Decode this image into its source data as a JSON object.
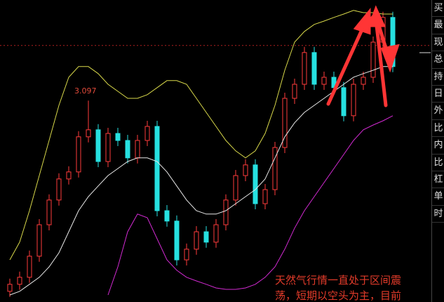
{
  "chart_data": {
    "type": "candlestick",
    "categories": [
      null,
      null,
      null,
      null,
      null,
      null,
      null,
      null,
      null,
      null,
      null,
      null,
      null,
      null,
      null,
      null,
      null,
      null,
      null,
      null,
      null,
      null,
      null,
      null,
      null,
      null,
      null,
      null,
      null,
      null,
      null,
      null,
      null,
      null,
      null,
      null,
      null,
      null,
      null,
      null
    ],
    "open": [
      2.418,
      2.443,
      2.468,
      2.543,
      2.655,
      2.743,
      2.818,
      2.843,
      2.968,
      2.993,
      2.88,
      2.98,
      2.955,
      2.893,
      2.955,
      3.005,
      2.705,
      2.668,
      2.53,
      2.568,
      2.63,
      2.593,
      2.655,
      2.743,
      2.83,
      2.868,
      2.73,
      2.78,
      2.93,
      3.105,
      3.155,
      3.268,
      3.155,
      3.18,
      3.143,
      3.043,
      3.155,
      3.18,
      3.305,
      3.393
    ],
    "high": [
      2.463,
      2.488,
      2.563,
      2.675,
      2.763,
      2.838,
      2.863,
      2.988,
      3.097,
      3.013,
      3.0,
      3.0,
      2.975,
      2.975,
      3.025,
      3.025,
      2.725,
      2.688,
      2.588,
      2.65,
      2.65,
      2.675,
      2.763,
      2.85,
      2.888,
      2.888,
      2.8,
      2.95,
      3.125,
      3.175,
      3.288,
      3.288,
      3.2,
      3.2,
      3.163,
      3.175,
      3.2,
      3.325,
      3.413,
      3.413
    ],
    "low": [
      2.398,
      2.423,
      2.448,
      2.523,
      2.635,
      2.723,
      2.798,
      2.823,
      2.948,
      2.86,
      2.86,
      2.935,
      2.873,
      2.873,
      2.935,
      2.685,
      2.648,
      2.51,
      2.51,
      2.548,
      2.573,
      2.573,
      2.635,
      2.723,
      2.81,
      2.71,
      2.71,
      2.76,
      2.91,
      3.085,
      3.135,
      3.135,
      3.135,
      3.123,
      3.023,
      3.023,
      3.135,
      3.16,
      3.285,
      3.198
    ],
    "close": [
      2.443,
      2.468,
      2.543,
      2.655,
      2.743,
      2.818,
      2.843,
      2.968,
      2.993,
      2.88,
      2.98,
      2.955,
      2.893,
      2.955,
      3.005,
      2.705,
      2.668,
      2.53,
      2.568,
      2.63,
      2.593,
      2.655,
      2.743,
      2.83,
      2.868,
      2.73,
      2.78,
      2.93,
      3.105,
      3.155,
      3.268,
      3.155,
      3.18,
      3.143,
      3.043,
      3.155,
      3.18,
      3.305,
      3.393,
      3.218
    ],
    "up_color": "#ff3b3b",
    "down_color": "#26e0e0",
    "series": [
      {
        "color": "#d8d84a",
        "values": [
          2.53,
          2.593,
          2.705,
          2.83,
          2.955,
          3.08,
          3.18,
          3.218,
          3.218,
          3.193,
          3.155,
          3.13,
          3.105,
          3.105,
          3.118,
          3.143,
          3.168,
          3.168,
          3.155,
          3.105,
          3.055,
          3.005,
          2.955,
          2.918,
          2.893,
          2.918,
          2.98,
          3.08,
          3.205,
          3.305,
          3.343,
          3.368,
          3.38,
          3.393,
          3.405,
          3.418,
          3.41,
          3.41,
          3.405,
          3.405
        ]
      },
      {
        "color": "#e8e8e8",
        "values": [
          2.405,
          2.418,
          2.443,
          2.468,
          2.505,
          2.555,
          2.63,
          2.705,
          2.755,
          2.793,
          2.83,
          2.855,
          2.88,
          2.893,
          2.893,
          2.88,
          2.843,
          2.793,
          2.743,
          2.705,
          2.693,
          2.693,
          2.705,
          2.73,
          2.755,
          2.78,
          2.818,
          2.893,
          2.968,
          3.018,
          3.055,
          3.08,
          3.105,
          3.13,
          3.155,
          3.18,
          3.193,
          3.205,
          3.218,
          3.218
        ]
      },
      {
        "color": "#d22ad2",
        "values": [
          null,
          null,
          null,
          null,
          null,
          null,
          null,
          null,
          null,
          null,
          2.405,
          2.505,
          2.63,
          2.693,
          2.68,
          2.605,
          2.53,
          2.493,
          2.468,
          2.455,
          2.443,
          2.43,
          2.425,
          2.425,
          2.43,
          2.443,
          2.468,
          2.505,
          2.568,
          2.643,
          2.705,
          2.755,
          2.805,
          2.855,
          2.905,
          2.955,
          2.993,
          3.01,
          3.025,
          3.043
        ]
      }
    ],
    "ylim": [
      2.38,
      3.455
    ],
    "ref_line": 3.293,
    "high_label": "3.097",
    "note": [
      "天然气行情一直处于区间震",
      "荡，短期以空头为主，目前"
    ]
  },
  "side_panel": [
    "买",
    "最",
    "现",
    "总",
    "持",
    "日",
    "外",
    "比",
    "内",
    "比",
    "杠",
    "单",
    "时"
  ]
}
